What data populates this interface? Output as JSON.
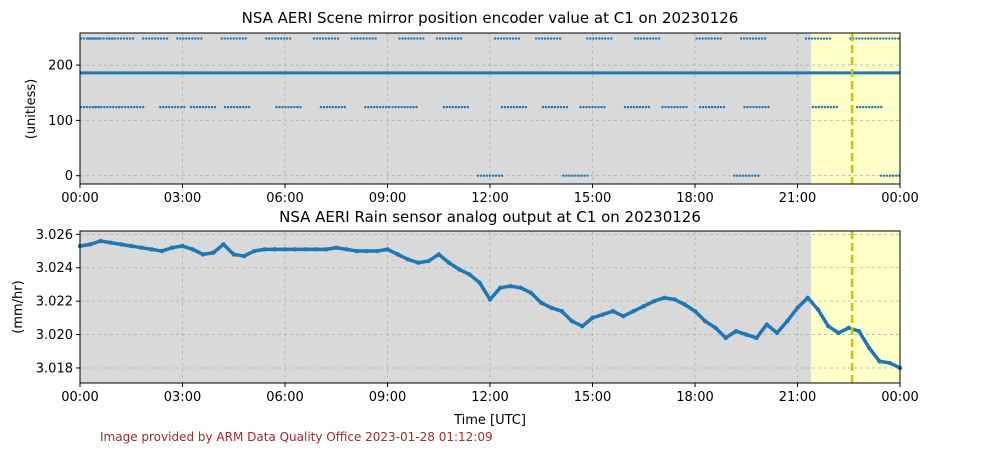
{
  "chart_data": [
    {
      "type": "scatter",
      "title": "NSA AERI Scene mirror position encoder value at C1 on 20230126",
      "xlabel": "",
      "ylabel": "(unitless)",
      "xlim": [
        0,
        24
      ],
      "ylim": [
        -15,
        258
      ],
      "x_tick_labels": [
        "00:00",
        "03:00",
        "06:00",
        "09:00",
        "12:00",
        "15:00",
        "18:00",
        "21:00",
        "00:00"
      ],
      "y_ticks": [
        0,
        100,
        200
      ],
      "grid": true,
      "shaded_regions": [
        {
          "x0": 0,
          "x1": 21.4,
          "color": "#d9d9d9"
        },
        {
          "x0": 21.4,
          "x1": 24,
          "color": "#ffffc8"
        }
      ],
      "vline_x": 22.6,
      "vline_color": "#c8c800",
      "series": [
        {
          "values": [
            [
              0,
              186
            ],
            [
              24,
              186
            ]
          ],
          "style": "line"
        },
        {
          "values": [
            [
              0.2,
              248
            ],
            [
              0.6,
              248
            ],
            [
              1.2,
              248
            ],
            [
              2.2,
              248
            ],
            [
              3.2,
              248
            ],
            [
              4.5,
              248
            ],
            [
              5.8,
              248
            ],
            [
              7.2,
              248
            ],
            [
              8.3,
              248
            ],
            [
              9.7,
              248
            ],
            [
              10.8,
              248
            ],
            [
              12.5,
              248
            ],
            [
              13.7,
              248
            ],
            [
              15.2,
              248
            ],
            [
              16.6,
              248
            ],
            [
              18.4,
              248
            ],
            [
              19.7,
              248
            ],
            [
              21.6,
              248
            ],
            [
              22.9,
              248
            ],
            [
              23.6,
              248
            ]
          ],
          "style": "dots"
        },
        {
          "values": [
            [
              0.2,
              124
            ],
            [
              0.8,
              124
            ],
            [
              1.5,
              124
            ],
            [
              2.7,
              124
            ],
            [
              3.6,
              124
            ],
            [
              4.6,
              124
            ],
            [
              6.1,
              124
            ],
            [
              7.4,
              124
            ],
            [
              8.7,
              124
            ],
            [
              9.5,
              124
            ],
            [
              11.0,
              124
            ],
            [
              12.7,
              124
            ],
            [
              13.9,
              124
            ],
            [
              15.0,
              124
            ],
            [
              16.3,
              124
            ],
            [
              17.4,
              124
            ],
            [
              18.5,
              124
            ],
            [
              19.8,
              124
            ],
            [
              21.8,
              124
            ],
            [
              23.1,
              124
            ]
          ],
          "style": "dots"
        },
        {
          "values": [
            [
              12.0,
              0
            ],
            [
              14.5,
              0
            ],
            [
              19.5,
              0
            ],
            [
              23.8,
              0
            ]
          ],
          "style": "dots"
        }
      ]
    },
    {
      "type": "scatter",
      "title": "NSA AERI Rain sensor analog output at C1 on 20230126",
      "xlabel": "Time [UTC]",
      "ylabel": "(mm/hr)",
      "xlim": [
        0,
        24
      ],
      "ylim": [
        3.0171,
        3.0262
      ],
      "x_tick_labels": [
        "00:00",
        "03:00",
        "06:00",
        "09:00",
        "12:00",
        "15:00",
        "18:00",
        "21:00",
        "00:00"
      ],
      "y_ticks": [
        3.018,
        3.02,
        3.022,
        3.024,
        3.026
      ],
      "y_tick_labels": [
        "3.018",
        "3.020",
        "3.022",
        "3.024",
        "3.026"
      ],
      "grid": true,
      "shaded_regions": [
        {
          "x0": 0,
          "x1": 21.4,
          "color": "#d9d9d9"
        },
        {
          "x0": 21.4,
          "x1": 24,
          "color": "#ffffc8"
        }
      ],
      "vline_x": 22.6,
      "vline_color": "#c8c800",
      "series": [
        {
          "values": [
            [
              0,
              3.0253
            ],
            [
              0.3,
              3.0254
            ],
            [
              0.6,
              3.0256
            ],
            [
              0.9,
              3.0255
            ],
            [
              1.2,
              3.0254
            ],
            [
              1.5,
              3.0253
            ],
            [
              1.8,
              3.0252
            ],
            [
              2.1,
              3.0251
            ],
            [
              2.4,
              3.025
            ],
            [
              2.7,
              3.0252
            ],
            [
              3.0,
              3.0253
            ],
            [
              3.3,
              3.0251
            ],
            [
              3.6,
              3.0248
            ],
            [
              3.9,
              3.0249
            ],
            [
              4.2,
              3.0254
            ],
            [
              4.5,
              3.0248
            ],
            [
              4.8,
              3.0247
            ],
            [
              5.1,
              3.025
            ],
            [
              5.4,
              3.0251
            ],
            [
              5.7,
              3.0251
            ],
            [
              6.0,
              3.0251
            ],
            [
              6.3,
              3.0251
            ],
            [
              6.6,
              3.0251
            ],
            [
              6.9,
              3.0251
            ],
            [
              7.2,
              3.0251
            ],
            [
              7.5,
              3.0252
            ],
            [
              7.8,
              3.0251
            ],
            [
              8.1,
              3.025
            ],
            [
              8.4,
              3.025
            ],
            [
              8.7,
              3.025
            ],
            [
              9.0,
              3.0251
            ],
            [
              9.3,
              3.0248
            ],
            [
              9.6,
              3.0245
            ],
            [
              9.9,
              3.0243
            ],
            [
              10.2,
              3.0244
            ],
            [
              10.5,
              3.0248
            ],
            [
              10.8,
              3.0243
            ],
            [
              11.1,
              3.0239
            ],
            [
              11.4,
              3.0236
            ],
            [
              11.7,
              3.0231
            ],
            [
              12.0,
              3.0221
            ],
            [
              12.3,
              3.0228
            ],
            [
              12.6,
              3.0229
            ],
            [
              12.9,
              3.0228
            ],
            [
              13.2,
              3.0225
            ],
            [
              13.5,
              3.0219
            ],
            [
              13.8,
              3.0216
            ],
            [
              14.1,
              3.0214
            ],
            [
              14.4,
              3.0208
            ],
            [
              14.7,
              3.0205
            ],
            [
              15.0,
              3.021
            ],
            [
              15.3,
              3.0212
            ],
            [
              15.6,
              3.0214
            ],
            [
              15.9,
              3.0211
            ],
            [
              16.2,
              3.0214
            ],
            [
              16.5,
              3.0217
            ],
            [
              16.8,
              3.022
            ],
            [
              17.1,
              3.0222
            ],
            [
              17.4,
              3.0221
            ],
            [
              17.7,
              3.0218
            ],
            [
              18.0,
              3.0214
            ],
            [
              18.3,
              3.0208
            ],
            [
              18.6,
              3.0204
            ],
            [
              18.9,
              3.0198
            ],
            [
              19.2,
              3.0202
            ],
            [
              19.5,
              3.02
            ],
            [
              19.8,
              3.0198
            ],
            [
              20.1,
              3.0206
            ],
            [
              20.4,
              3.0201
            ],
            [
              20.7,
              3.0208
            ],
            [
              21.0,
              3.0216
            ],
            [
              21.3,
              3.0222
            ],
            [
              21.6,
              3.0215
            ],
            [
              21.9,
              3.0205
            ],
            [
              22.2,
              3.0201
            ],
            [
              22.5,
              3.0204
            ],
            [
              22.8,
              3.0202
            ],
            [
              23.1,
              3.0192
            ],
            [
              23.4,
              3.0184
            ],
            [
              23.7,
              3.0183
            ],
            [
              24.0,
              3.018
            ]
          ],
          "style": "dots"
        }
      ]
    }
  ],
  "footer": "Image provided by ARM Data Quality Office 2023-01-28 01:12:09",
  "colors": {
    "series": "#1f77b4",
    "panel_gray": "#d9d9d9",
    "panel_yellow": "#ffffc8",
    "vline": "#c8c800",
    "footer": "#a52a2a"
  }
}
